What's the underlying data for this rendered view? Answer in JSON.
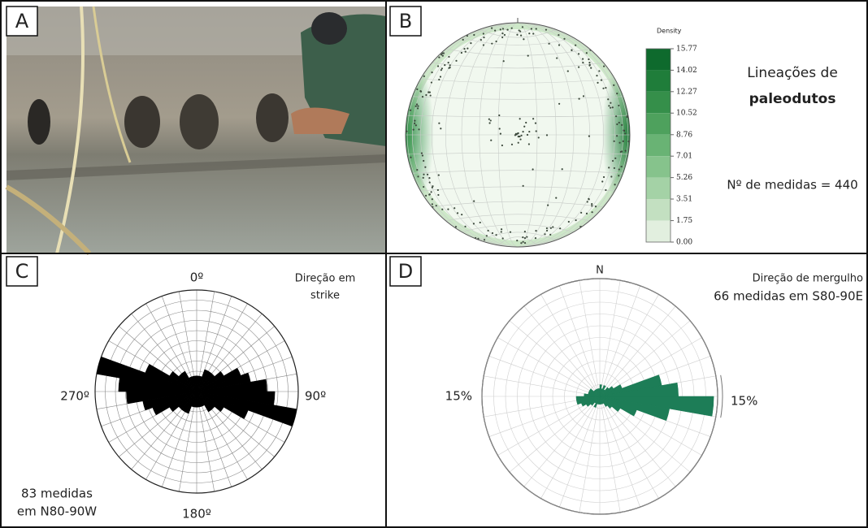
{
  "panel_letters": [
    "A",
    "B",
    "C",
    "D"
  ],
  "stereonet": {
    "density_label": "Density",
    "colorbar_ticks": [
      15.77,
      14.02,
      12.27,
      10.52,
      8.76,
      7.01,
      5.26,
      3.51,
      1.75,
      {
        "value": 0,
        "label": "0.00"
      }
    ],
    "title_line1": "Lineações de",
    "title_line2": "paleodutos",
    "count_text": "Nº de medidas = 440"
  },
  "chart_data": [
    {
      "type": "rose",
      "bidirectional": true,
      "color": "#000000",
      "x": [
        0,
        10,
        20,
        30,
        40,
        50,
        60,
        70,
        80,
        90,
        100,
        110,
        120,
        130,
        140,
        150,
        160,
        170
      ],
      "values": [
        2,
        2,
        3,
        3,
        3,
        4,
        6,
        7,
        9,
        10,
        13,
        7,
        4,
        3,
        3,
        2,
        2,
        2
      ],
      "rlim": [
        0,
        13
      ],
      "north_label": "0º",
      "east_label": "90º",
      "south_label": "180º",
      "west_label": "270º",
      "note_line1": "Direção em",
      "note_line2": "strike",
      "count_line1": "83 medidas",
      "count_line2": "em N80-90W"
    },
    {
      "type": "rose",
      "bidirectional": false,
      "color": "#1d7d57",
      "x": [
        0,
        10,
        20,
        30,
        40,
        50,
        60,
        70,
        80,
        90,
        100,
        110,
        120,
        130,
        140,
        150,
        160,
        170,
        180,
        190,
        200,
        210,
        220,
        230,
        240,
        250,
        260,
        270,
        280,
        290,
        300,
        310,
        320,
        330,
        340,
        350
      ],
      "values": [
        1.5,
        1,
        1.5,
        1,
        1.5,
        2,
        3,
        8,
        10,
        14.5,
        9,
        5,
        3,
        2,
        1.5,
        1,
        1,
        1,
        1,
        1,
        1.5,
        1,
        1.5,
        2,
        2.5,
        3,
        3,
        2,
        1.5,
        1.5,
        1.5,
        1,
        1,
        1,
        1,
        1
      ],
      "rlim": [
        0,
        15
      ],
      "rticks": [
        {
          "value": 15,
          "label": "15%"
        }
      ],
      "north_label": "N",
      "note_line1": "Direção de mergulho",
      "note_line2": "66 medidas em S80-90E"
    }
  ]
}
